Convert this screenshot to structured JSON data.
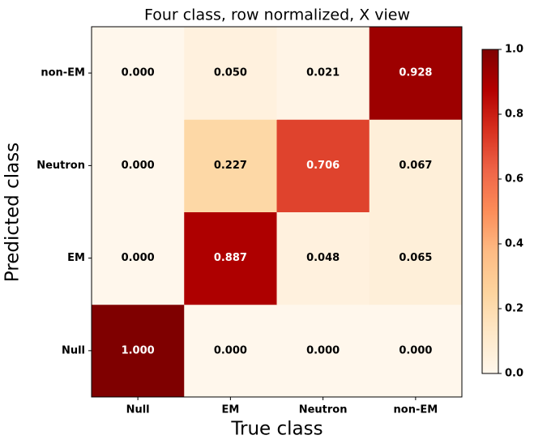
{
  "chart_data": {
    "type": "heatmap",
    "title": "Four class, row normalized, X view",
    "x_label": "True class",
    "y_label": "Predicted class",
    "x_categories": [
      "Null",
      "EM",
      "Neutron",
      "non-EM"
    ],
    "y_categories": [
      "Null",
      "EM",
      "Neutron",
      "non-EM"
    ],
    "values": [
      [
        1,
        0,
        0,
        0
      ],
      [
        0,
        0.887,
        0.048,
        0.065
      ],
      [
        0,
        0.227,
        0.706,
        0.067
      ],
      [
        0,
        0.05,
        0.021,
        0.928
      ]
    ],
    "value_labels": [
      [
        "1.000",
        "0.000",
        "0.000",
        "0.000"
      ],
      [
        "0.000",
        "0.887",
        "0.048",
        "0.065"
      ],
      [
        "0.000",
        "0.227",
        "0.706",
        "0.067"
      ],
      [
        "0.000",
        "0.050",
        "0.021",
        "0.928"
      ]
    ],
    "colormap": "OrRd",
    "zlim": [
      0,
      1
    ],
    "zticks": [
      {
        "value": 0,
        "label": "0.0"
      },
      {
        "value": 0.2,
        "label": "0.2"
      },
      {
        "value": 0.4,
        "label": "0.4"
      },
      {
        "value": 0.6,
        "label": "0.6"
      },
      {
        "value": 0.8,
        "label": "0.8"
      },
      {
        "value": 1,
        "label": "1.0"
      }
    ]
  }
}
